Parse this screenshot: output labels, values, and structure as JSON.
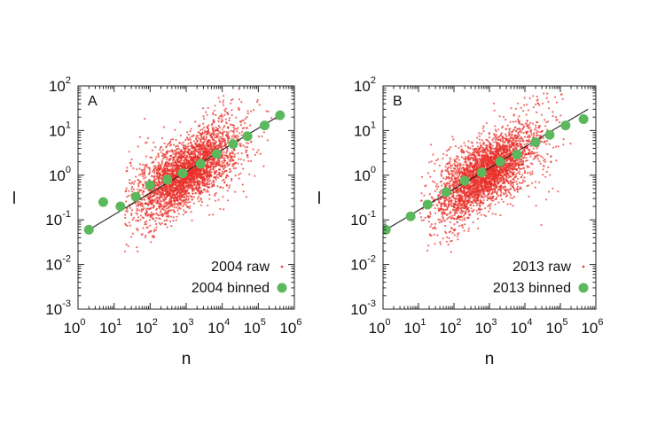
{
  "chart_data": [
    {
      "type": "scatter",
      "panel_label": "A",
      "xlabel": "n",
      "ylabel": "l",
      "xscale": "log",
      "yscale": "log",
      "xlim": [
        1,
        1000000
      ],
      "ylim": [
        0.001,
        100
      ],
      "x_ticks": [
        {
          "base": "10",
          "exp": "0"
        },
        {
          "base": "10",
          "exp": "1"
        },
        {
          "base": "10",
          "exp": "2"
        },
        {
          "base": "10",
          "exp": "3"
        },
        {
          "base": "10",
          "exp": "4"
        },
        {
          "base": "10",
          "exp": "5"
        },
        {
          "base": "10",
          "exp": "6"
        }
      ],
      "y_ticks": [
        {
          "base": "10",
          "exp": "-3"
        },
        {
          "base": "10",
          "exp": "-2"
        },
        {
          "base": "10",
          "exp": "-1"
        },
        {
          "base": "10",
          "exp": "0"
        },
        {
          "base": "10",
          "exp": "1"
        },
        {
          "base": "10",
          "exp": "2"
        }
      ],
      "legend_position": "bottom-right",
      "raw": {
        "name": "2004 raw",
        "color": "#e8302a",
        "cloud_center": {
          "log_n": 3.0,
          "log_l": 0.05
        },
        "log_n_range": [
          1.3,
          5.5
        ]
      },
      "binned": {
        "name": "2004 binned",
        "color": "#5cb85c",
        "x": [
          2,
          5,
          15,
          40,
          100,
          300,
          800,
          2500,
          7000,
          20000,
          50000,
          150000,
          400000
        ],
        "y": [
          0.06,
          0.25,
          0.2,
          0.33,
          0.6,
          0.8,
          1.1,
          1.8,
          3.0,
          5.0,
          7.5,
          13,
          22
        ]
      },
      "fit_line": {
        "x": [
          2,
          400000
        ],
        "y": [
          0.06,
          22
        ]
      }
    },
    {
      "type": "scatter",
      "panel_label": "B",
      "xlabel": "n",
      "ylabel": "l",
      "xscale": "log",
      "yscale": "log",
      "xlim": [
        1,
        1000000
      ],
      "ylim": [
        0.001,
        100
      ],
      "x_ticks": [
        {
          "base": "10",
          "exp": "0"
        },
        {
          "base": "10",
          "exp": "1"
        },
        {
          "base": "10",
          "exp": "2"
        },
        {
          "base": "10",
          "exp": "3"
        },
        {
          "base": "10",
          "exp": "4"
        },
        {
          "base": "10",
          "exp": "5"
        },
        {
          "base": "10",
          "exp": "6"
        }
      ],
      "y_ticks": [
        {
          "base": "10",
          "exp": "-3"
        },
        {
          "base": "10",
          "exp": "-2"
        },
        {
          "base": "10",
          "exp": "-1"
        },
        {
          "base": "10",
          "exp": "0"
        },
        {
          "base": "10",
          "exp": "1"
        },
        {
          "base": "10",
          "exp": "2"
        }
      ],
      "legend_position": "bottom-right",
      "raw": {
        "name": "2013 raw",
        "color": "#e8302a",
        "cloud_center": {
          "log_n": 2.9,
          "log_l": 0.05
        },
        "log_n_range": [
          1.0,
          5.3
        ]
      },
      "binned": {
        "name": "2013 binned",
        "color": "#5cb85c",
        "x": [
          1.2,
          6,
          18,
          60,
          200,
          600,
          2000,
          6000,
          20000,
          50000,
          140000,
          450000
        ],
        "y": [
          0.06,
          0.12,
          0.22,
          0.42,
          0.75,
          1.15,
          2.0,
          2.9,
          5.5,
          8.0,
          13,
          18
        ]
      },
      "fit_line": {
        "x": [
          1.2,
          600000
        ],
        "y": [
          0.06,
          30
        ]
      }
    }
  ]
}
